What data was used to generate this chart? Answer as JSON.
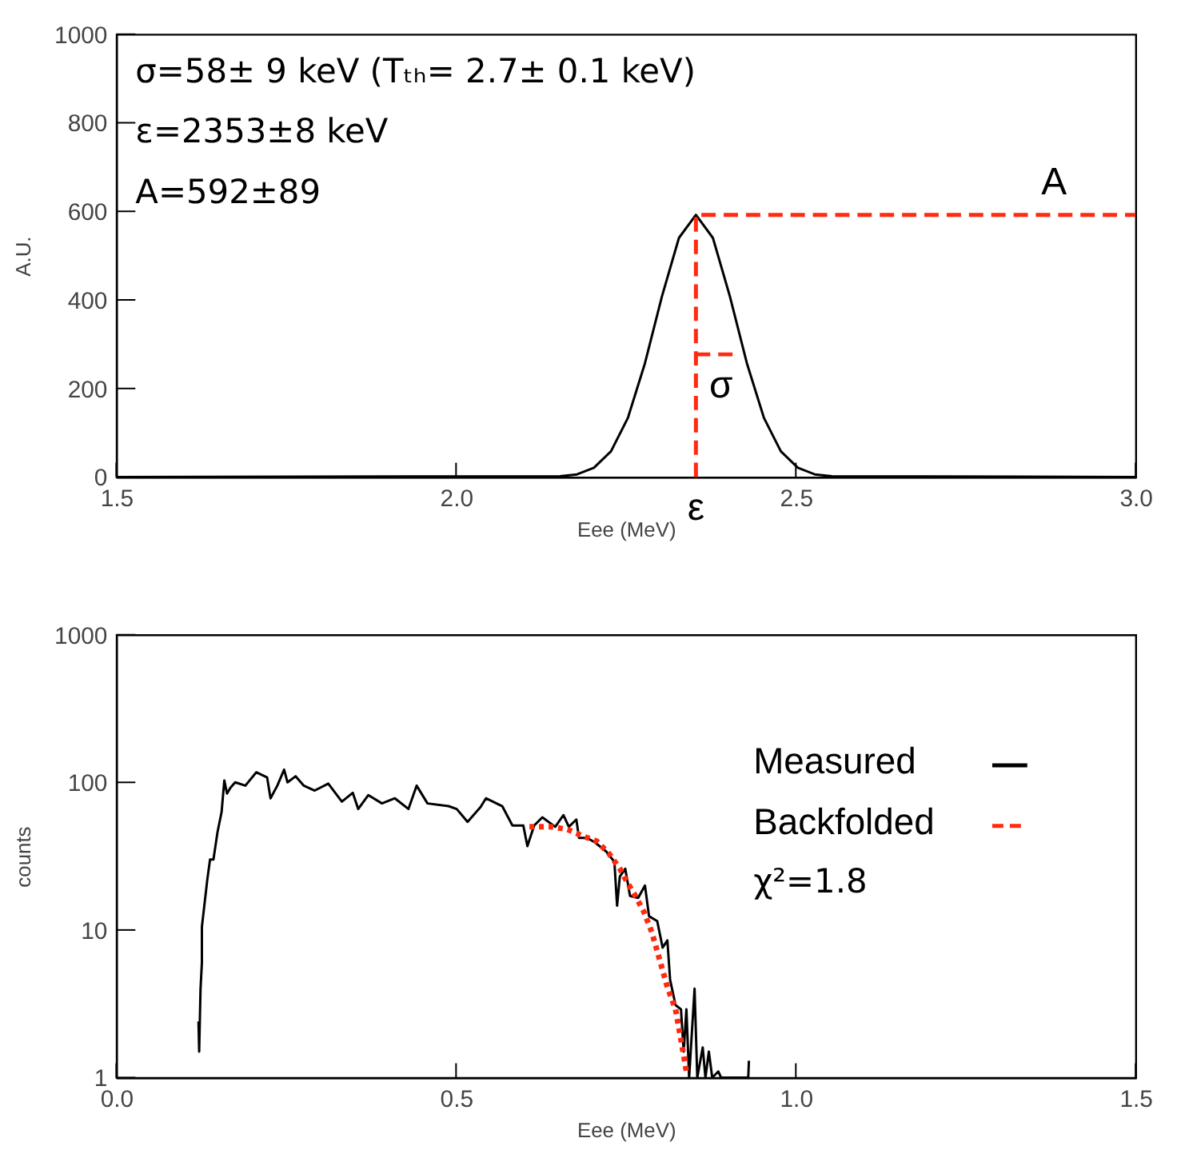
{
  "chart_data": [
    {
      "type": "line",
      "xlabel": "Eee (MeV)",
      "ylabel": "A.U.",
      "xlim": [
        1.5,
        3.0
      ],
      "ylim": [
        0,
        1000
      ],
      "xticks": [
        1.5,
        {
          "value": 2,
          "label": "2.0"
        },
        2.5,
        {
          "value": 3,
          "label": "3.0"
        }
      ],
      "yticks": [
        0,
        200,
        400,
        600,
        800,
        1000
      ],
      "grid": false,
      "legend": false,
      "marker": "none",
      "annotations": [
        "σ=58± 9 keV (Tₜₕ= 2.7± 0.1 keV)",
        "ε=2353±8 keV",
        "A=592±89",
        {
          "text": "A",
          "x": 2.88,
          "y": 592
        },
        {
          "text": "σ",
          "x": 2.39,
          "y": 277
        },
        {
          "text": "ε",
          "x": 2.353,
          "y": 0
        }
      ],
      "series": [
        {
          "color": "#000000",
          "line_style": "solid",
          "x": [
            1.5,
            2.153,
            2.178,
            2.203,
            2.228,
            2.253,
            2.278,
            2.303,
            2.328,
            2.353,
            2.378,
            2.403,
            2.428,
            2.453,
            2.478,
            2.503,
            2.528,
            2.553,
            3.0
          ],
          "values": [
            0,
            2,
            6,
            21,
            58,
            134,
            257,
            408,
            540,
            592,
            540,
            408,
            257,
            134,
            58,
            21,
            6,
            2,
            0
          ]
        },
        {
          "color": "#ff2a10",
          "line_style": "dashed",
          "x": [
            2.353,
            2.353,
            3.0
          ],
          "values": [
            0,
            592,
            592
          ]
        },
        {
          "color": "#ff2a10",
          "line_style": "dashed",
          "x": [
            2.353,
            2.411
          ],
          "values": [
            277,
            277
          ]
        }
      ]
    },
    {
      "type": "line",
      "xlabel": "Eee (MeV)",
      "ylabel": "counts",
      "xlim": [
        0,
        1.5
      ],
      "ylim": [
        1,
        1000
      ],
      "log": "y",
      "xticks": [
        {
          "value": 0,
          "label": "0.0"
        },
        0.5,
        {
          "value": 1,
          "label": "1.0"
        },
        1.5
      ],
      "yticks": [
        1,
        10,
        100,
        1000
      ],
      "grid": false,
      "legend": "right",
      "marker": "none",
      "annotations": [
        "χ²=1.8"
      ],
      "series": [
        {
          "name": "Measured",
          "color": "#000000",
          "line_style": "solid",
          "x": [
            0.121,
            0.122,
            0.124,
            0.126,
            0.126,
            0.134,
            0.138,
            0.143,
            0.149,
            0.155,
            0.159,
            0.163,
            0.168,
            0.175,
            0.19,
            0.206,
            0.222,
            0.227,
            0.237,
            0.247,
            0.252,
            0.264,
            0.276,
            0.292,
            0.312,
            0.332,
            0.348,
            0.356,
            0.371,
            0.391,
            0.41,
            0.43,
            0.442,
            0.458,
            0.489,
            0.501,
            0.517,
            0.536,
            0.544,
            0.568,
            0.583,
            0.599,
            0.605,
            0.615,
            0.627,
            0.646,
            0.658,
            0.666,
            0.677,
            0.681,
            0.693,
            0.705,
            0.721,
            0.733,
            0.737,
            0.741,
            0.749,
            0.756,
            0.768,
            0.778,
            0.784,
            0.796,
            0.804,
            0.811,
            0.815,
            0.823,
            0.831,
            0.835,
            0.839,
            0.843,
            0.851,
            0.855,
            0.863,
            0.867,
            0.872,
            0.877,
            0.886,
            0.89,
            0.93,
            0.931
          ],
          "values": [
            2.4,
            1.5,
            4,
            6,
            10.5,
            22,
            30,
            30,
            46,
            63,
            103,
            84,
            92,
            100,
            95,
            117,
            108,
            78,
            95,
            122,
            100,
            110,
            95,
            88,
            98,
            74,
            85,
            66,
            82,
            72,
            78,
            66,
            95,
            72,
            69,
            66,
            54,
            68,
            78,
            69,
            51,
            51,
            37,
            51,
            58,
            50,
            60,
            50,
            56,
            42,
            42,
            39,
            34,
            29,
            14.6,
            23,
            26,
            17,
            16.5,
            20,
            12.4,
            11.5,
            7.6,
            8.5,
            4.6,
            3.1,
            2.9,
            1.5,
            2.9,
            1,
            4,
            1,
            1.6,
            1,
            1.5,
            1,
            1.1,
            1,
            1,
            1.3
          ]
        },
        {
          "name": "Backfolded",
          "color": "#ff2a10",
          "line_style": "dotted",
          "x": [
            0.608,
            0.64,
            0.664,
            0.688,
            0.707,
            0.725,
            0.741,
            0.752,
            0.764,
            0.776,
            0.788,
            0.8,
            0.811,
            0.823,
            0.832,
            0.839
          ],
          "values": [
            50,
            50,
            48,
            43,
            40,
            33,
            26,
            21,
            17,
            13.4,
            9.7,
            6.2,
            4.1,
            2.9,
            1.7,
            1.1
          ]
        }
      ]
    }
  ]
}
